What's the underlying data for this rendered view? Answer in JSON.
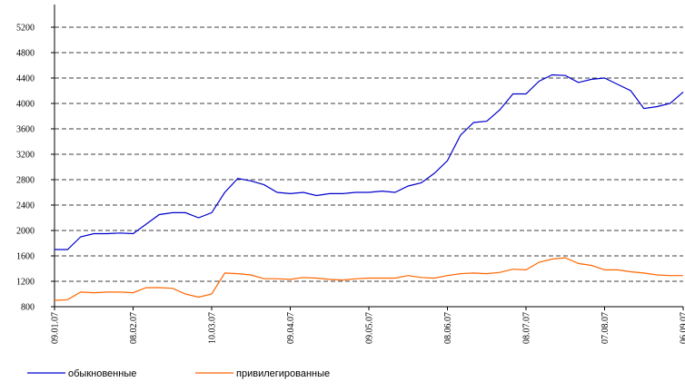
{
  "chart_data": {
    "type": "line",
    "categories": [
      "09.01.07",
      null,
      null,
      null,
      null,
      null,
      "08.02.07",
      null,
      null,
      null,
      null,
      null,
      "10.03.07",
      null,
      null,
      null,
      null,
      null,
      "09.04.07",
      null,
      null,
      null,
      null,
      null,
      "09.05.07",
      null,
      null,
      null,
      null,
      null,
      "08.06.07",
      null,
      null,
      null,
      null,
      null,
      "08.07.07",
      null,
      null,
      null,
      null,
      null,
      "07.08.07",
      null,
      null,
      null,
      null,
      null,
      "06.09.07"
    ],
    "series": [
      {
        "name": "обыкновенные",
        "color": "#0000cc",
        "values": [
          1700,
          1700,
          1900,
          1950,
          1950,
          1960,
          1950,
          2100,
          2250,
          2280,
          2280,
          2200,
          2280,
          2600,
          2820,
          2780,
          2720,
          2600,
          2580,
          2600,
          2550,
          2580,
          2580,
          2600,
          2600,
          2620,
          2600,
          2700,
          2750,
          2900,
          3100,
          3500,
          3700,
          3720,
          3900,
          4150,
          4150,
          4350,
          4450,
          4440,
          4330,
          4380,
          4400,
          4300,
          4200,
          3920,
          3950,
          4000,
          4180
        ]
      },
      {
        "name": "привилегированные",
        "color": "#ff6600",
        "values": [
          900,
          910,
          1030,
          1020,
          1030,
          1030,
          1020,
          1100,
          1100,
          1090,
          1000,
          950,
          1000,
          1330,
          1320,
          1300,
          1240,
          1240,
          1230,
          1260,
          1250,
          1230,
          1220,
          1240,
          1250,
          1250,
          1250,
          1290,
          1260,
          1250,
          1290,
          1320,
          1330,
          1320,
          1340,
          1390,
          1380,
          1500,
          1550,
          1570,
          1480,
          1450,
          1380,
          1380,
          1350,
          1330,
          1300,
          1290,
          1290
        ]
      }
    ],
    "ylim": [
      800,
      5200
    ],
    "yticks": [
      800,
      1200,
      1600,
      2000,
      2400,
      2800,
      3200,
      3600,
      4000,
      4400,
      4800,
      5200
    ],
    "grid": true,
    "legend": "bottom"
  }
}
